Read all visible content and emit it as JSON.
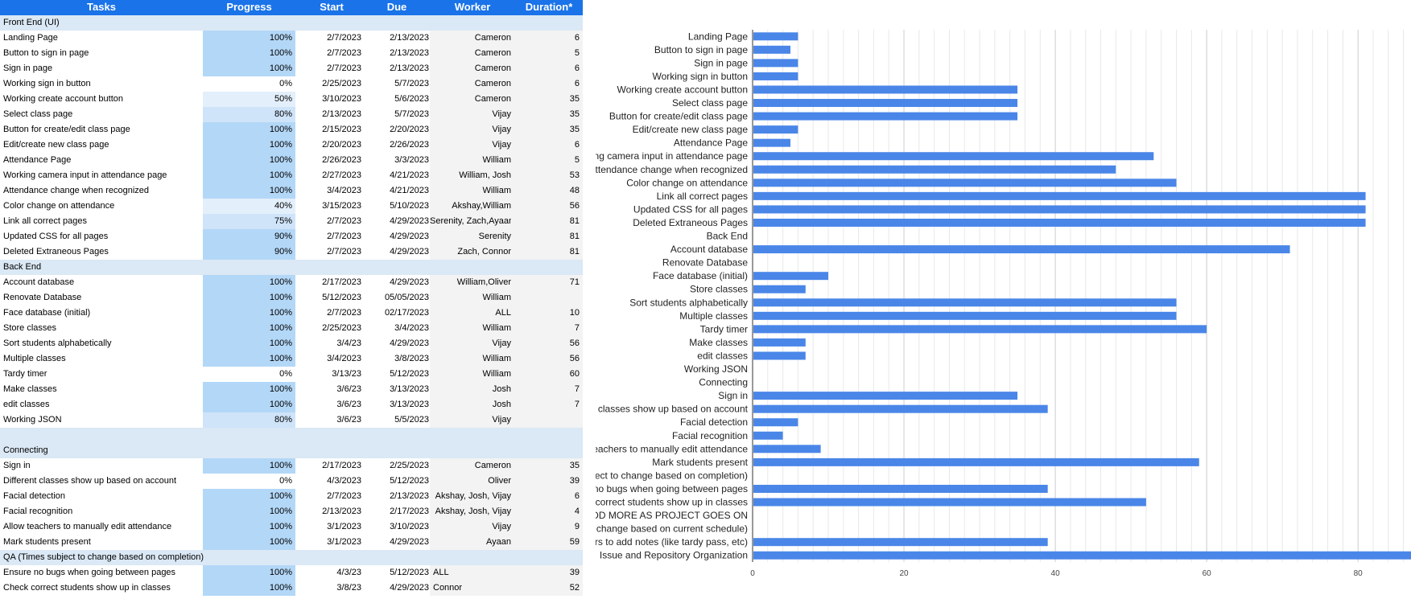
{
  "colors": {
    "header": "#1a73e8",
    "progress_full": "#b3d7f7",
    "progress_mid": "#cfe4f9",
    "progress_low": "#e3effb",
    "section": "#dbe8f5",
    "bar": "#4a86e8"
  },
  "sheet": {
    "headers": {
      "tasks": "Tasks",
      "progress": "Progress",
      "start": "Start",
      "due": "Due",
      "worker": "Worker",
      "duration": "Duration*"
    },
    "rows": [
      {
        "kind": "section",
        "task": "Front End (UI)"
      },
      {
        "task": "Landing Page",
        "progress": "100%",
        "level": 1.0,
        "start": "2/7/2023",
        "due": "2/13/2023",
        "worker": "Cameron",
        "duration": "6"
      },
      {
        "task": "Button to sign in page",
        "progress": "100%",
        "level": 1.0,
        "start": "2/7/2023",
        "due": "2/13/2023",
        "worker": "Cameron",
        "duration": "5"
      },
      {
        "task": "Sign in page",
        "progress": "100%",
        "level": 1.0,
        "start": "2/7/2023",
        "due": "2/13/2023",
        "worker": "Cameron",
        "duration": "6"
      },
      {
        "task": "Working sign in button",
        "progress": "0%",
        "level": 0.0,
        "start": "2/25/2023",
        "due": "5/7/2023",
        "worker": "Cameron",
        "duration": "6"
      },
      {
        "task": "Working create account button",
        "progress": "50%",
        "level": 0.5,
        "start": "3/10/2023",
        "due": "5/6/2023",
        "worker": "Cameron",
        "duration": "35"
      },
      {
        "task": "Select class page",
        "progress": "80%",
        "level": 0.8,
        "start": "2/13/2023",
        "due": "5/7/2023",
        "worker": "Vijay",
        "duration": "35"
      },
      {
        "task": "Button for create/edit class page",
        "progress": "100%",
        "level": 1.0,
        "start": "2/15/2023",
        "due": "2/20/2023",
        "worker": "Vijay",
        "duration": "35"
      },
      {
        "task": "Edit/create new class page",
        "progress": "100%",
        "level": 1.0,
        "start": "2/20/2023",
        "due": "2/26/2023",
        "worker": "Vijay",
        "duration": "6"
      },
      {
        "task": "Attendance Page",
        "progress": "100%",
        "level": 1.0,
        "start": "2/26/2023",
        "due": "3/3/2023",
        "worker": "William",
        "duration": "5"
      },
      {
        "task": "Working camera input in attendance page",
        "progress": "100%",
        "level": 1.0,
        "start": "2/27/2023",
        "due": "4/21/2023",
        "worker": "William, Josh",
        "duration": "53"
      },
      {
        "task": "Attendance change when recognized",
        "progress": "100%",
        "level": 1.0,
        "start": "3/4/2023",
        "due": "4/21/2023",
        "worker": "William",
        "duration": "48"
      },
      {
        "task": "Color change on attendance",
        "progress": "40%",
        "level": 0.4,
        "start": "3/15/2023",
        "due": "5/10/2023",
        "worker": "Akshay,William",
        "duration": "56"
      },
      {
        "task": "Link all correct pages",
        "progress": "75%",
        "level": 0.75,
        "start": "2/7/2023",
        "due": "4/29/2023",
        "worker": "Serenity, Zach,Ayaan",
        "duration": "81"
      },
      {
        "task": "Updated CSS for all pages",
        "progress": "90%",
        "level": 0.9,
        "start": "2/7/2023",
        "due": "4/29/2023",
        "worker": "Serenity",
        "duration": "81"
      },
      {
        "task": "Deleted Extraneous Pages",
        "progress": "90%",
        "level": 0.9,
        "start": "2/7/2023",
        "due": "4/29/2023",
        "worker": "Zach, Connor",
        "duration": "81"
      },
      {
        "kind": "section",
        "task": "Back End"
      },
      {
        "task": "Account database",
        "progress": "100%",
        "level": 1.0,
        "start": "2/17/2023",
        "due": "4/29/2023",
        "worker": "William,Oliver",
        "duration": "71"
      },
      {
        "task": "Renovate Database",
        "progress": "100%",
        "level": 1.0,
        "start": "5/12/2023",
        "due": "05/05/2023",
        "worker": "William",
        "duration": ""
      },
      {
        "task": "Face database (initial)",
        "progress": "100%",
        "level": 1.0,
        "start": "2/7/2023",
        "due": "02/17/2023",
        "worker": "ALL",
        "duration": "10"
      },
      {
        "task": "Store classes",
        "progress": "100%",
        "level": 1.0,
        "start": "2/25/2023",
        "due": "3/4/2023",
        "worker": "William",
        "duration": "7"
      },
      {
        "task": "Sort students alphabetically",
        "progress": "100%",
        "level": 1.0,
        "start": "3/4/23",
        "due": "4/29/2023",
        "worker": "Vijay",
        "duration": "56"
      },
      {
        "task": "Multiple classes",
        "progress": "100%",
        "level": 1.0,
        "start": "3/4/2023",
        "due": "3/8/2023",
        "worker": "William",
        "duration": "56"
      },
      {
        "task": "Tardy timer",
        "progress": "0%",
        "level": 0.0,
        "start": "3/13/23",
        "due": "5/12/2023",
        "worker": "William",
        "duration": "60"
      },
      {
        "task": "Make classes",
        "progress": "100%",
        "level": 1.0,
        "start": "3/6/23",
        "due": "3/13/2023",
        "worker": "Josh",
        "duration": "7"
      },
      {
        "task": "edit classes",
        "progress": "100%",
        "level": 1.0,
        "start": "3/6/23",
        "due": "3/13/2023",
        "worker": "Josh",
        "duration": "7"
      },
      {
        "task": "Working JSON",
        "progress": "80%",
        "level": 0.8,
        "start": "3/6/23",
        "due": "5/5/2023",
        "worker": "Vijay",
        "duration": ""
      },
      {
        "kind": "blank",
        "task": ""
      },
      {
        "kind": "section",
        "task": "Connecting"
      },
      {
        "task": "Sign in",
        "progress": "100%",
        "level": 1.0,
        "start": "2/17/2023",
        "due": "2/25/2023",
        "worker": "Cameron",
        "duration": "35"
      },
      {
        "task": "Different classes show up based on account",
        "progress": "0%",
        "level": 0.0,
        "start": "4/3/2023",
        "due": "5/12/2023",
        "worker": "Oliver",
        "duration": "39"
      },
      {
        "task": "Facial detection",
        "progress": "100%",
        "level": 1.0,
        "start": "2/7/2023",
        "due": "2/13/2023",
        "worker": "Akshay, Josh, Vijay",
        "duration": "6"
      },
      {
        "task": "Facial recognition",
        "progress": "100%",
        "level": 1.0,
        "start": "2/13/2023",
        "due": "2/17/2023",
        "worker": "Akshay, Josh, Vijay",
        "duration": "4"
      },
      {
        "task": "Allow teachers to manually edit attendance",
        "progress": "100%",
        "level": 1.0,
        "start": "3/1/2023",
        "due": "3/10/2023",
        "worker": "Vijay",
        "duration": "9"
      },
      {
        "task": "Mark students present",
        "progress": "100%",
        "level": 1.0,
        "start": "3/1/2023",
        "due": "4/29/2023",
        "worker": "Ayaan",
        "duration": "59"
      },
      {
        "kind": "section",
        "task": "QA (Times subject to change based on completion)"
      },
      {
        "task": "Ensure no bugs when going between pages",
        "progress": "100%",
        "level": 1.0,
        "start": "4/3/23",
        "due": "5/12/2023",
        "worker": "ALL",
        "worker_align": "left",
        "duration": "39"
      },
      {
        "task": "Check correct students show up in classes",
        "progress": "100%",
        "level": 1.0,
        "start": "3/8/23",
        "due": "4/29/2023",
        "worker": "Connor",
        "worker_align": "left",
        "duration": "52"
      }
    ]
  },
  "chart_data": {
    "type": "bar",
    "orientation": "horizontal",
    "xlim": [
      0,
      87
    ],
    "xticks": [
      0,
      20,
      40,
      60,
      80
    ],
    "grid": true,
    "categories": [
      "Landing Page",
      "Button to sign in page",
      "Sign in page",
      "Working sign in button",
      "Working create account button",
      "Select class page",
      "Button for create/edit class page",
      "Edit/create new class page",
      "Attendance Page",
      "Working camera input in attendance page",
      "Attendance change when recognized",
      "Color change on attendance",
      "Link all correct pages",
      "Updated CSS for all pages",
      "Deleted Extraneous Pages",
      "Back End",
      "Account database",
      "Renovate Database",
      "Face database (initial)",
      "Store classes",
      "Sort students alphabetically",
      "Multiple classes",
      "Tardy timer",
      "Make classes",
      "edit classes",
      "Working JSON",
      "Connecting",
      "Sign in",
      "Different classes show up based on account",
      "Facial detection",
      "Facial recognition",
      "Allow teachers to manually edit attendance",
      "Mark students present",
      "QA (Times subject to change based on completion)",
      "Ensure no bugs when going between pages",
      "Check correct students show up in classes",
      "WILL ADD MORE AS PROJECT GOES ON",
      "Extras (times will change based on current schedule)",
      "Also teachers to add notes (like tardy pass, etc)",
      "Issue and Repository Organization"
    ],
    "values": [
      6,
      5,
      6,
      6,
      35,
      35,
      35,
      6,
      5,
      53,
      48,
      56,
      81,
      81,
      81,
      0,
      71,
      0,
      10,
      7,
      56,
      56,
      60,
      7,
      7,
      0,
      0,
      35,
      39,
      6,
      4,
      9,
      59,
      0,
      39,
      52,
      0,
      0,
      39,
      87
    ]
  }
}
